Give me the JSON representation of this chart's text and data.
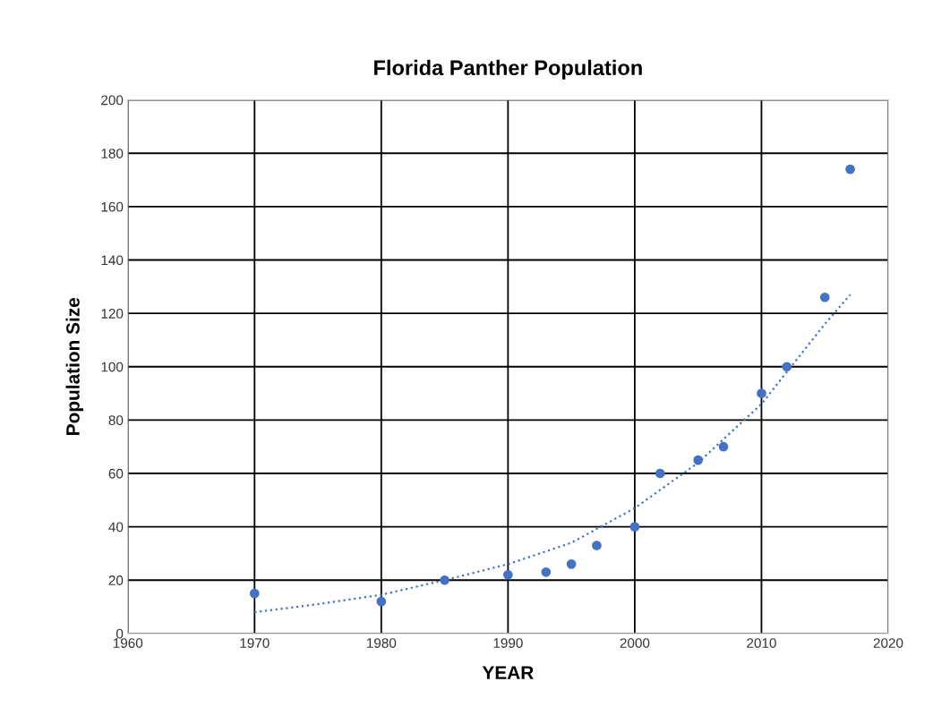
{
  "chart_data": {
    "type": "scatter",
    "title": "Florida Panther Population",
    "xlabel": "YEAR",
    "ylabel": "Population Size",
    "x": [
      1970,
      1980,
      1985,
      1990,
      1993,
      1995,
      1997,
      2000,
      2002,
      2005,
      2007,
      2010,
      2012,
      2015,
      2017
    ],
    "series": [
      {
        "color": "#4472c4",
        "values": [
          15,
          12,
          20,
          22,
          23,
          26,
          33,
          40,
          60,
          65,
          70,
          90,
          100,
          126,
          174
        ]
      },
      {
        "type": "line",
        "line_style": "dotted",
        "marker": "none",
        "color": "#4472c4",
        "x": [
          1970,
          1975,
          1980,
          1985,
          1990,
          1995,
          2000,
          2005,
          2010,
          2015,
          2017
        ],
        "values": [
          8,
          11,
          14.5,
          20,
          26,
          34,
          47,
          64,
          86,
          116,
          127
        ]
      }
    ],
    "marker": "circle",
    "grid": true,
    "xlim": [
      1960,
      2020
    ],
    "xticks": [
      1960,
      1970,
      1980,
      1990,
      2000,
      2010,
      2020
    ],
    "ylim": [
      0,
      200
    ],
    "yticks": [
      0,
      20,
      40,
      60,
      80,
      100,
      120,
      140,
      160,
      180,
      200
    ]
  }
}
